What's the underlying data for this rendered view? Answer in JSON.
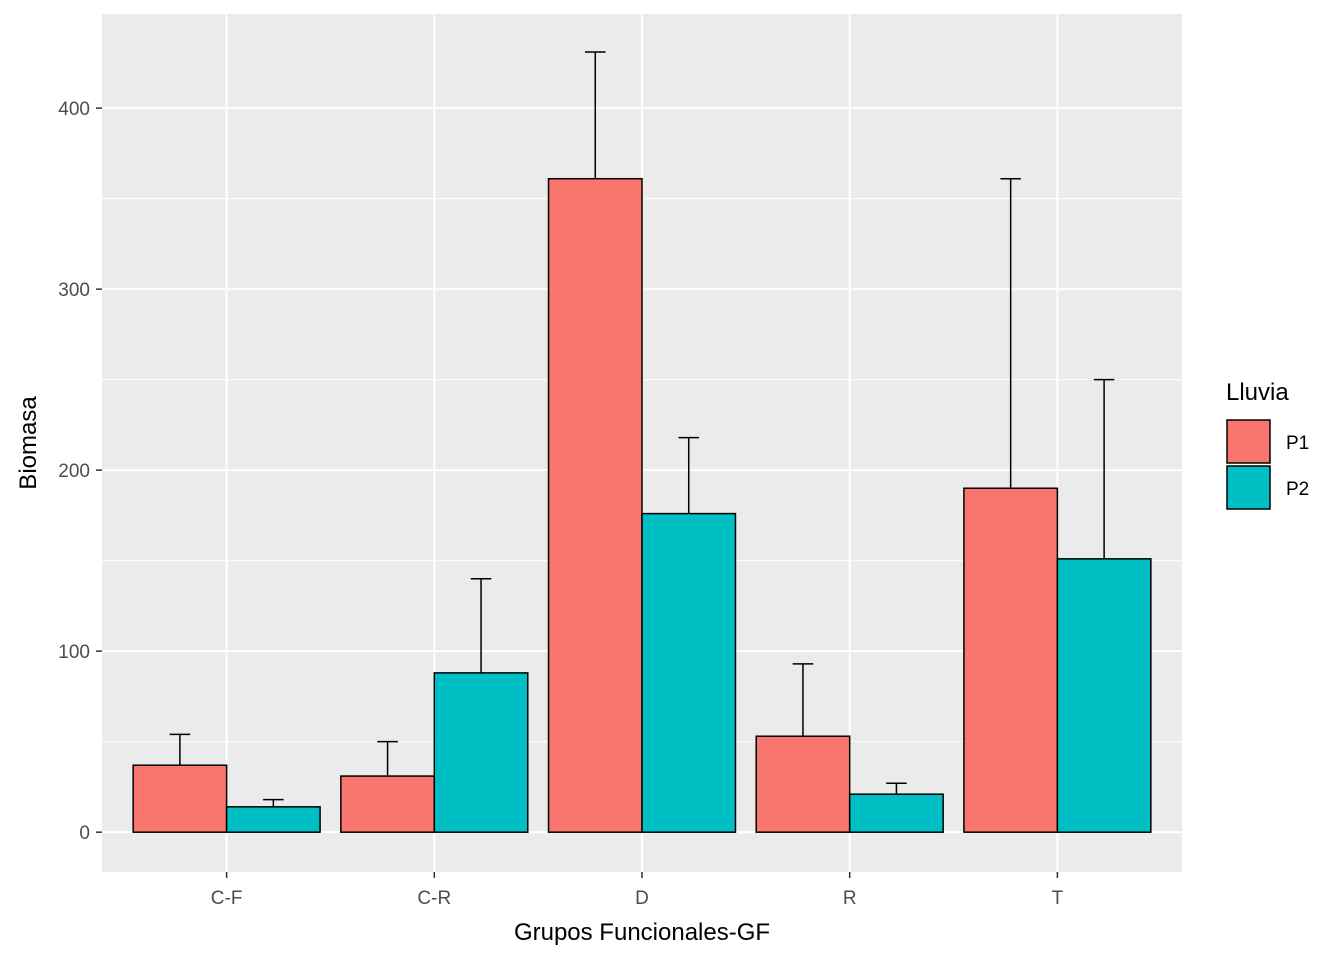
{
  "chart_data": {
    "type": "bar",
    "xlabel": "Grupos Funcionales-GF",
    "ylabel": "Biomasa",
    "categories": [
      "C-F",
      "C-R",
      "D",
      "R",
      "T"
    ],
    "ylim": [
      -22,
      452
    ],
    "yticks": [
      "0",
      "100",
      "200",
      "300",
      "400"
    ],
    "ytick_values": [
      0,
      100,
      200,
      300,
      400
    ],
    "grid": true,
    "legend": {
      "title": "Lluvia",
      "position": "right"
    },
    "series": [
      {
        "name": "P1",
        "color": "#F8766D",
        "values": [
          37,
          31,
          361,
          53,
          190
        ],
        "error_upper": [
          54,
          50,
          431,
          93,
          361
        ]
      },
      {
        "name": "P2",
        "color": "#00BFC4",
        "values": [
          14,
          88,
          176,
          21,
          151
        ],
        "error_upper": [
          18,
          140,
          218,
          27,
          250
        ]
      }
    ],
    "colors": {
      "panel": "#EBEBEB",
      "grid": "#FFFFFF",
      "outline": "#000000"
    }
  }
}
